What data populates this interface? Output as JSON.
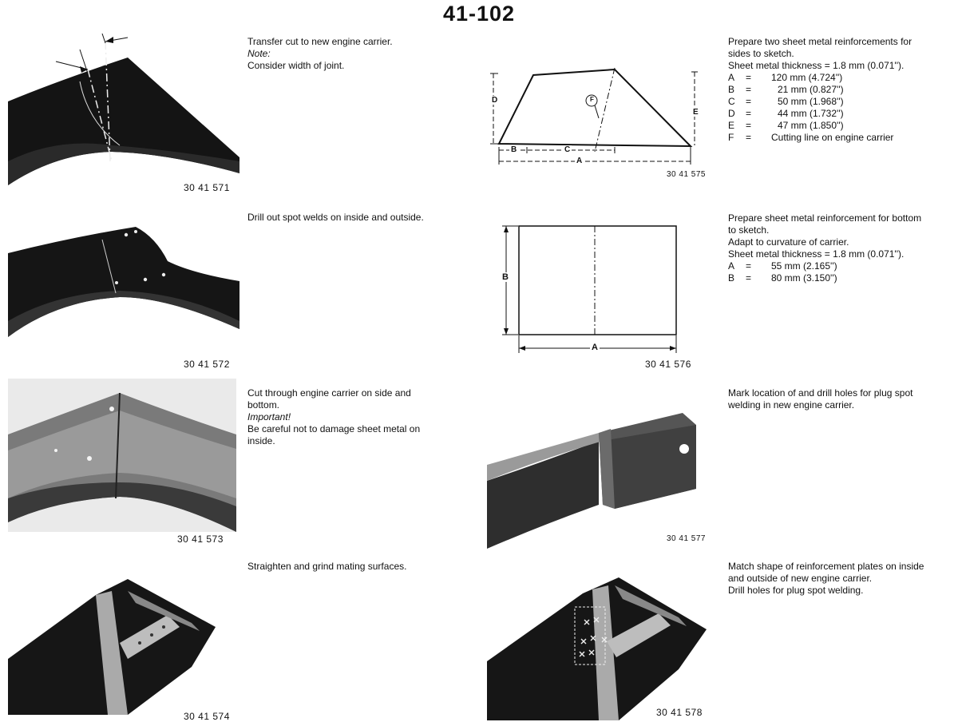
{
  "page_number": "41-102",
  "steps": [
    {
      "caption": "30 41 571",
      "lines": [
        "Transfer cut to new engine carrier.",
        "Note:",
        "Consider width of joint."
      ]
    },
    {
      "caption": "30 41 572",
      "lines": [
        "Drill out spot welds on inside and outside."
      ]
    },
    {
      "caption": "30 41 573",
      "lines": [
        "Cut through engine carrier on side and",
        "bottom.",
        "Important!",
        "Be careful not to damage sheet metal on",
        "inside."
      ]
    },
    {
      "caption": "30 41 574",
      "lines": [
        "Straighten and grind mating surfaces."
      ]
    },
    {
      "caption": "30 41 575",
      "intro": [
        "Prepare two sheet metal reinforcements for",
        "sides to sketch.",
        "Sheet metal thickness = 1.8 mm (0.071'')."
      ],
      "specs": [
        {
          "k": "A",
          "eq": "=",
          "v": "120 mm (4.724'')"
        },
        {
          "k": "B",
          "eq": "=",
          "v": "21 mm (0.827'')"
        },
        {
          "k": "C",
          "eq": "=",
          "v": "50 mm (1.968'')"
        },
        {
          "k": "D",
          "eq": "=",
          "v": "44 mm (1.732'')"
        },
        {
          "k": "E",
          "eq": "=",
          "v": "47 mm (1.850'')"
        },
        {
          "k": "F",
          "eq": "=",
          "v": "Cutting line on engine carrier"
        }
      ],
      "labels": {
        "a": "A",
        "b": "B",
        "c": "C",
        "d": "D",
        "e": "E",
        "f": "F"
      }
    },
    {
      "caption": "30 41 576",
      "intro": [
        "Prepare sheet metal reinforcement for bottom",
        "to sketch.",
        "Adapt to curvature of carrier.",
        "Sheet metal thickness = 1.8 mm (0.071'')."
      ],
      "specs": [
        {
          "k": "A",
          "eq": "=",
          "v": "55 mm (2.165'')"
        },
        {
          "k": "B",
          "eq": "=",
          "v": "80 mm (3.150'')"
        }
      ],
      "labels": {
        "a": "A",
        "b": "B"
      }
    },
    {
      "caption": "30 41 577",
      "lines": [
        "Mark location of and drill holes for plug spot",
        "welding in new engine carrier."
      ]
    },
    {
      "caption": "30 41 578",
      "lines": [
        "Match shape of reinforcement plates on inside",
        "and outside of new engine carrier.",
        "Drill holes for plug spot welding."
      ]
    }
  ]
}
